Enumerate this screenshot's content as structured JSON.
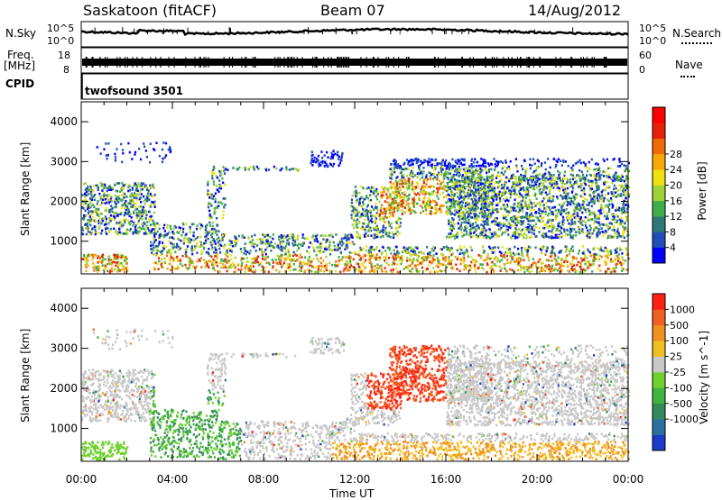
{
  "header": {
    "station": "Saskatoon (fitACF)",
    "beam": "Beam 07",
    "date": "14/Aug/2012"
  },
  "strips": {
    "nsky_label": "N.Sky",
    "nsearch_label": "N.Search",
    "nsky_ticks": [
      "10^5",
      "10^0"
    ],
    "nsearch_ticks": [
      "10^5",
      "10^0"
    ],
    "freq_label": "Freq.",
    "freq_unit": "[MHz]",
    "freq_ticks": [
      "18",
      "8"
    ],
    "nave_label": "Nave",
    "nave_ticks": [
      "60",
      "0"
    ],
    "cpid_label": "CPID",
    "cpid_value": "twofsound 3501"
  },
  "x_axis": {
    "label": "Time UT",
    "ticks": [
      "00:00",
      "04:00",
      "08:00",
      "12:00",
      "16:00",
      "20:00",
      "00:00"
    ]
  },
  "chart_data": [
    {
      "type": "heatmap",
      "panel": "power",
      "xlabel": "Time UT",
      "ylabel": "Slant Range [km]",
      "xlim_hours": [
        0,
        24
      ],
      "ylim_km": [
        180,
        4500
      ],
      "y_ticks": [
        1000,
        2000,
        3000,
        4000
      ],
      "colorbar": {
        "label": "Power [dB]",
        "ticks": [
          4,
          8,
          12,
          16,
          20,
          24,
          28
        ],
        "colors": [
          "#0000ff",
          "#1e4fb8",
          "#2f7a78",
          "#3fae4a",
          "#9fd233",
          "#f0e010",
          "#f7a808",
          "#f06a08",
          "#e82008",
          "#ff0000"
        ]
      }
    },
    {
      "type": "heatmap",
      "panel": "velocity",
      "xlabel": "Time UT",
      "ylabel": "Slant Range [km]",
      "xlim_hours": [
        0,
        24
      ],
      "ylim_km": [
        180,
        4500
      ],
      "y_ticks": [
        1000,
        2000,
        3000,
        4000
      ],
      "colorbar": {
        "label": "Velocity [m s^-1]",
        "ticks": [
          1000,
          500,
          100,
          25,
          -25,
          -100,
          -500,
          -1000
        ],
        "colors": [
          "#1a3cc8",
          "#2a70a0",
          "#338a5a",
          "#40b440",
          "#70d030",
          "#c8c8c8",
          "#f0c020",
          "#f09020",
          "#f06020",
          "#ff2010"
        ]
      }
    }
  ]
}
